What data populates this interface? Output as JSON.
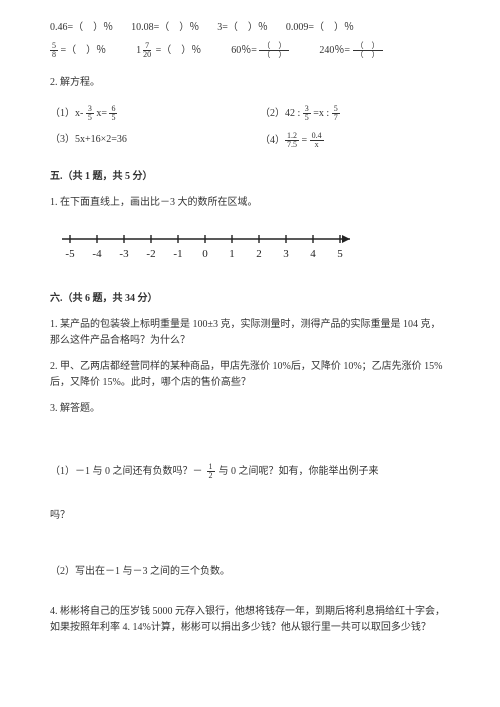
{
  "row1": {
    "a": "0.46=（　）％",
    "b": "10.08=（　）％",
    "c": "3=（　）％",
    "d": "0.009=（　）％"
  },
  "row2": {
    "a_pre": " =（　）％",
    "b_mid": " =（　）％",
    "c_pre": "60％= ",
    "d_pre": "240％= "
  },
  "frac": {
    "five_eight_n": "5",
    "five_eight_d": "8",
    "one": "1",
    "seven_twenty_n": "7",
    "seven_twenty_d": "20",
    "paren_n": "（　）",
    "paren_d": "（　）",
    "three_five_n": "3",
    "three_five_d": "5",
    "six_five_n": "6",
    "six_five_d": "5",
    "five_seven_n": "5",
    "five_seven_d": "7",
    "onetwo_n": "1.2",
    "sevenfive_d": "7.5",
    "zerofour_n": "0.4",
    "x_d": "x",
    "half_n": "1",
    "half_d": "2"
  },
  "labels": {
    "solve_eq": "2. 解方程。",
    "eq1_pre": "（1）x- ",
    "eq1_mid": " x= ",
    "eq2_pre": "（2）42 : ",
    "eq2_mid": " =x : ",
    "eq3": "（3）5x+16×2=36",
    "eq4_pre": "（4）",
    "eq4_eq": " = ",
    "sec5": "五.（共 1 题，共 5 分）",
    "q5_1": "1. 在下面直线上，画出比－3 大的数所在区域。",
    "sec6": "六.（共 6 题，共 34 分）",
    "q6_1": "1. 某产品的包装袋上标明重量是 100±3 克，实际测量时，测得产品的实际重量是 104 克，那么这件产品合格吗？为什么？",
    "q6_2": "2. 甲、乙两店都经营同样的某种商品，甲店先涨价 10%后，又降价 10%；乙店先涨价 15%后，又降价 15%。此时，哪个店的售价高些？",
    "q6_3": "3. 解答题。",
    "q6_3_1a": "（1）－1 与 0 之间还有负数吗？－ ",
    "q6_3_1b": " 与 0 之间呢？如有，你能举出例子来",
    "q6_3_1c": "吗？",
    "q6_3_2": "（2）写出在－1 与－3 之间的三个负数。",
    "q6_4": "4. 彬彬将自己的压岁钱 5000 元存入银行，他想将钱存一年，到期后将利息捐给红十字会，如果按照年利率 4. 14%计算，彬彬可以捐出多少钱？他从银行里一共可以取回多少钱？"
  },
  "numberline": {
    "ticks": [
      "-5",
      "-4",
      "-3",
      "-2",
      "-1",
      "0",
      "1",
      "2",
      "3",
      "4",
      "5"
    ]
  },
  "colors": {
    "text": "#333333",
    "line": "#222222"
  }
}
